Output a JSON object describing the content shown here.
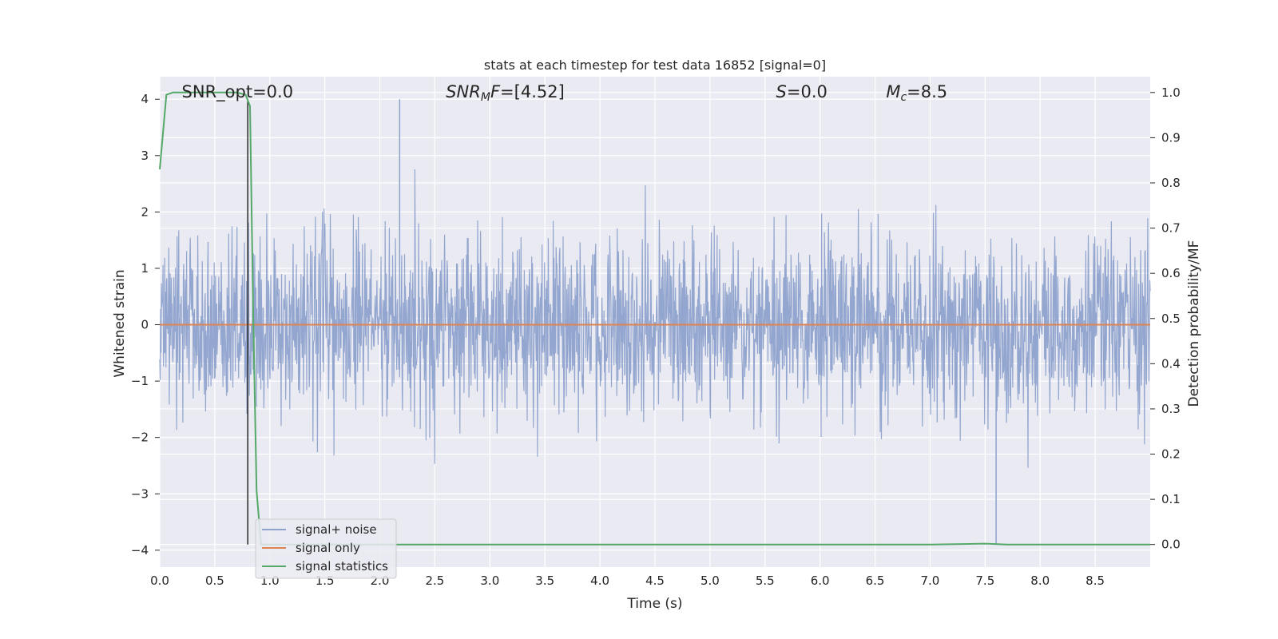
{
  "chart_data": {
    "type": "line",
    "title": "stats at each timestep for test data 16852 [signal=0]",
    "xlabel": "Time (s)",
    "ylabel": "Whitened strain",
    "ylabel_right": "Detection probability/MF",
    "xlim": [
      0.0,
      9.0
    ],
    "ylim": [
      -4.3,
      4.4
    ],
    "ylim_right": [
      -0.05,
      1.035
    ],
    "x_ticks": [
      "0.0",
      "0.5",
      "1.0",
      "1.5",
      "2.0",
      "2.5",
      "3.0",
      "3.5",
      "4.0",
      "4.5",
      "5.0",
      "5.5",
      "6.0",
      "6.5",
      "7.0",
      "7.5",
      "8.0",
      "8.5"
    ],
    "y_ticks": [
      "4",
      "3",
      "2",
      "1",
      "0",
      "−1",
      "−2",
      "−3",
      "−4"
    ],
    "y_right_ticks": [
      "1.0",
      "0.9",
      "0.8",
      "0.7",
      "0.6",
      "0.5",
      "0.4",
      "0.3",
      "0.2",
      "0.1",
      "0.0"
    ],
    "grid": true,
    "legend_position": "lower-left",
    "annotations": [
      {
        "text": "SNR_opt=0.0",
        "x": 0.2
      },
      {
        "text": "SNR_MF=[4.52]",
        "x": 2.6
      },
      {
        "text": "S=0.0",
        "x": 5.6
      },
      {
        "text": "M_c=8.5",
        "x": 6.6
      }
    ],
    "vertical_marker_x": 0.8,
    "series": [
      {
        "name": "signal+ noise",
        "axis": "left",
        "color": "#8ea2cc",
        "x_range": [
          0.0,
          9.0
        ],
        "envelope_std": 0.78,
        "max": 4.0,
        "min": -3.9
      },
      {
        "name": "signal only",
        "axis": "left",
        "color": "#dd8452",
        "x": [
          0.0,
          9.0
        ],
        "values": [
          0.0,
          0.0
        ]
      },
      {
        "name": "signal statistics",
        "axis": "right",
        "color": "#55a868",
        "x": [
          0.0,
          0.06,
          0.12,
          0.2,
          0.4,
          0.6,
          0.7,
          0.78,
          0.82,
          0.85,
          0.88,
          0.92,
          1.0,
          2.0,
          3.0,
          4.0,
          5.0,
          6.0,
          7.0,
          7.3,
          7.5,
          7.7,
          8.0,
          9.0
        ],
        "values": [
          0.83,
          0.995,
          1.0,
          1.0,
          1.0,
          1.0,
          1.0,
          0.995,
          0.97,
          0.5,
          0.12,
          0.0,
          0.0,
          0.0,
          0.0,
          0.0,
          0.0,
          0.0,
          0.0,
          0.001,
          0.002,
          0.0,
          0.0,
          0.0
        ]
      }
    ]
  },
  "legend": {
    "items": [
      {
        "label": "signal+ noise",
        "color": "#8ea2cc"
      },
      {
        "label": "signal only",
        "color": "#dd8452"
      },
      {
        "label": "signal statistics",
        "color": "#55a868"
      }
    ]
  }
}
